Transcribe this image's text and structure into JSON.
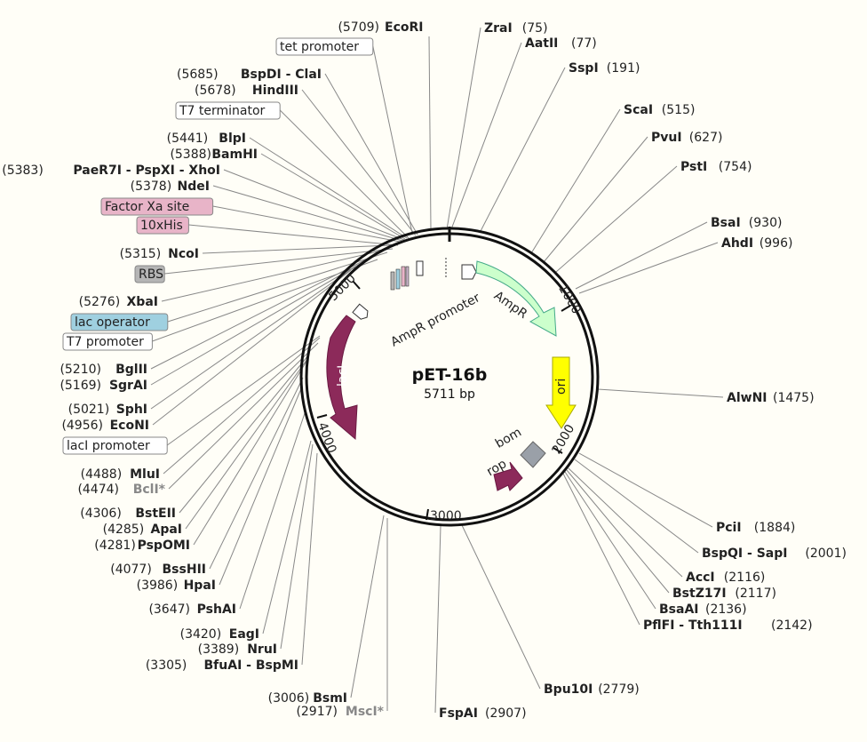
{
  "plasmid": {
    "name": "pET-16b",
    "size": "5711 bp"
  },
  "ticks": [
    "1000",
    "2000",
    "3000",
    "4000",
    "5000"
  ],
  "features": [
    {
      "name": "AmpR promoter"
    },
    {
      "name": "AmpR"
    },
    {
      "name": "ori"
    },
    {
      "name": "bom"
    },
    {
      "name": "rop"
    },
    {
      "name": "lacI"
    }
  ],
  "boxed_labels": [
    {
      "text": "tet promoter",
      "color": "#ffffff"
    },
    {
      "text": "T7 terminator",
      "color": "#ffffff"
    },
    {
      "text": "Factor Xa site",
      "color": "#e8b4c8"
    },
    {
      "text": "10xHis",
      "color": "#e8b4c8"
    },
    {
      "text": "RBS",
      "color": "#b5b5b5"
    },
    {
      "text": "lac operator",
      "color": "#9fd0e0"
    },
    {
      "text": "T7 promoter",
      "color": "#ffffff"
    },
    {
      "text": "lacI promoter",
      "color": "#ffffff"
    }
  ],
  "sites_right": [
    {
      "name": "EcoRI",
      "pos": "(5709)",
      "left_pos": true
    },
    {
      "name": "ZraI",
      "pos": "(75)"
    },
    {
      "name": "AatII",
      "pos": "(77)"
    },
    {
      "name": "SspI",
      "pos": "(191)"
    },
    {
      "name": "ScaI",
      "pos": "(515)"
    },
    {
      "name": "PvuI",
      "pos": "(627)"
    },
    {
      "name": "PstI",
      "pos": "(754)"
    },
    {
      "name": "BsaI",
      "pos": "(930)"
    },
    {
      "name": "AhdI",
      "pos": "(996)"
    },
    {
      "name": "AlwNI",
      "pos": "(1475)"
    },
    {
      "name": "PciI",
      "pos": "(1884)"
    },
    {
      "name": "BspQI - SapI",
      "pos": "(2001)"
    },
    {
      "name": "AccI",
      "pos": "(2116)"
    },
    {
      "name": "BstZ17I",
      "pos": "(2117)"
    },
    {
      "name": "BsaAI",
      "pos": "(2136)"
    },
    {
      "name": "PflFI - Tth111I",
      "pos": "(2142)"
    },
    {
      "name": "Bpu10I",
      "pos": "(2779)"
    },
    {
      "name": "FspAI",
      "pos": "(2907)"
    }
  ],
  "sites_left": [
    {
      "name": "BspDI - ClaI",
      "pos": "(5685)"
    },
    {
      "name": "HindIII",
      "pos": "(5678)"
    },
    {
      "name": "BlpI",
      "pos": "(5441)"
    },
    {
      "name": "BamHI",
      "pos": "(5388)"
    },
    {
      "name": "PaeR7I - PspXI - XhoI",
      "pos": "(5383)"
    },
    {
      "name": "NdeI",
      "pos": "(5378)"
    },
    {
      "name": "NcoI",
      "pos": "(5315)"
    },
    {
      "name": "XbaI",
      "pos": "(5276)"
    },
    {
      "name": "BglII",
      "pos": "(5210)"
    },
    {
      "name": "SgrAI",
      "pos": "(5169)"
    },
    {
      "name": "SphI",
      "pos": "(5021)"
    },
    {
      "name": "EcoNI",
      "pos": "(4956)"
    },
    {
      "name": "MluI",
      "pos": "(4488)"
    },
    {
      "name": "BclI*",
      "pos": "(4474)",
      "gray": true
    },
    {
      "name": "BstEII",
      "pos": "(4306)"
    },
    {
      "name": "ApaI",
      "pos": "(4285)"
    },
    {
      "name": "PspOMI",
      "pos": "(4281)"
    },
    {
      "name": "BssHII",
      "pos": "(4077)"
    },
    {
      "name": "HpaI",
      "pos": "(3986)"
    },
    {
      "name": "PshAI",
      "pos": "(3647)"
    },
    {
      "name": "EagI",
      "pos": "(3420)"
    },
    {
      "name": "NruI",
      "pos": "(3389)"
    },
    {
      "name": "BfuAI - BspMI",
      "pos": "(3305)"
    },
    {
      "name": "BsmI",
      "pos": "(3006)"
    },
    {
      "name": "MscI*",
      "pos": "(2917)",
      "gray": true
    }
  ]
}
